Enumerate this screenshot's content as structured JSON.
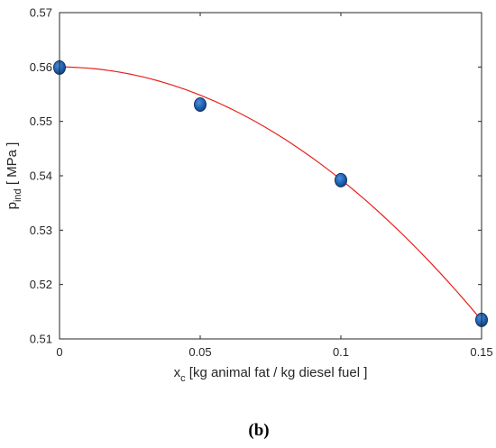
{
  "chart_data": {
    "type": "scatter",
    "xlabel": {
      "main": "x",
      "sub": "c",
      "rest": " [kg animal fat / kg diesel fuel ]"
    },
    "ylabel": {
      "main": "p",
      "sub": "ind",
      "rest": "  [ MPa ]"
    },
    "xlim": [
      0,
      0.15
    ],
    "ylim": [
      0.51,
      0.57
    ],
    "xticks": [
      0,
      0.05,
      0.1,
      0.15
    ],
    "xtick_labels": [
      "0",
      "0.05",
      "0.1",
      "0.15"
    ],
    "yticks": [
      0.51,
      0.52,
      0.53,
      0.54,
      0.55,
      0.56,
      0.57
    ],
    "ytick_labels": [
      "0.51",
      "0.52",
      "0.53",
      "0.54",
      "0.55",
      "0.56",
      "0.57"
    ],
    "grid": false,
    "series": [
      {
        "type": "scatter",
        "x": [
          0,
          0.05,
          0.1,
          0.15
        ],
        "y": [
          0.5599,
          0.5531,
          0.5392,
          0.5135
        ],
        "color": "#1f5fb0"
      },
      {
        "type": "line",
        "fit": "quadratic",
        "coefficients": [
          0.56,
          0.0,
          -2.07
        ],
        "color": "#e8201a"
      }
    ]
  },
  "panel_label": "(b)"
}
